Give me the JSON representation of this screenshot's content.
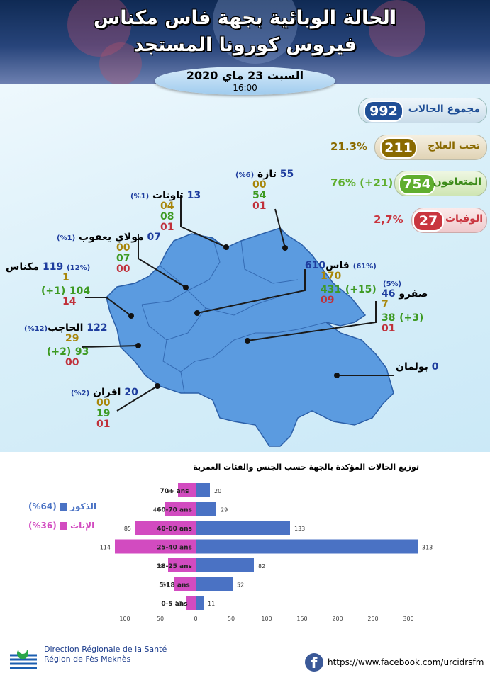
{
  "header": {
    "title_line1": "الحالة الوبائية بجهة فاس مكناس",
    "title_line2": "فيروس كورونا المستجد",
    "date": "السبت 23 ماي 2020",
    "time": "16:00"
  },
  "stats": {
    "total": {
      "label": "مجموع الحالات",
      "value": "992",
      "color": "#1f4e96"
    },
    "treatment": {
      "label": "تحت العلاج",
      "value": "211",
      "pct": "21.3%",
      "color": "#8a6a00"
    },
    "recovered": {
      "label": "المتعافون",
      "value": "754",
      "pct": "76% (+21)",
      "color": "#5fae2e"
    },
    "deaths": {
      "label": "الوفيات",
      "value": "27",
      "pct": "2,7%",
      "color": "#c9353f"
    }
  },
  "regions": {
    "taza": {
      "name": "تازة",
      "total": "55",
      "pct": "(6%)",
      "active": "00",
      "recovered": "54",
      "deaths": "01"
    },
    "taounate": {
      "name": "تاونات",
      "total": "13",
      "pct": "(1%)",
      "active": "04",
      "recovered": "08",
      "deaths": "01"
    },
    "moulay_yacoub": {
      "name": "مولاي يعقوب",
      "total": "07",
      "pct": "(1%)",
      "active": "00",
      "recovered": "07",
      "deaths": "00"
    },
    "meknes": {
      "name": "مكناس",
      "total": "119",
      "pct": "(12%)",
      "active": "1",
      "recovered": "104",
      "recovered_new": "(+1)",
      "deaths": "14"
    },
    "fes": {
      "name": "فاس",
      "total": "610",
      "pct": "(61%)",
      "active": "170",
      "recovered": "431",
      "recovered_new": "(+15)",
      "deaths": "09"
    },
    "sefrou": {
      "name": "صفرو",
      "total": "46",
      "pct": "(5%)",
      "active": "7",
      "recovered": "38",
      "recovered_new": "(+3)",
      "deaths": "01"
    },
    "hajeb": {
      "name": "الحاجب",
      "total": "122",
      "pct": "(12%)",
      "active": "29",
      "recovered": "93",
      "recovered_new": "(+2)",
      "deaths": "00"
    },
    "boulemane": {
      "name": "بولمان",
      "total": "0"
    },
    "ifrane": {
      "name": "افران",
      "total": "20",
      "pct": "(2%)",
      "active": "00",
      "recovered": "19",
      "deaths": "01"
    }
  },
  "chart_data": {
    "type": "bar",
    "title": "توزيع الحالات المؤكدة بالجهة حسب الجنس والفئات العمرية",
    "categories": [
      "70+ ans",
      "60-70 ans",
      "40-60 ans",
      "25-40 ans",
      "18-25 ans",
      "5-18 ans",
      "0-5 ans"
    ],
    "series": [
      {
        "name": "الذكور",
        "pct": "(64%)",
        "color": "#4a72c4",
        "values": [
          20,
          29,
          133,
          313,
          82,
          52,
          11
        ]
      },
      {
        "name": "الإناث",
        "pct": "(36%)",
        "color": "#d24bc0",
        "values": [
          25,
          44,
          85,
          114,
          39,
          31,
          13
        ]
      }
    ],
    "axis_ticks": [
      "100",
      "50",
      "0",
      "50",
      "100",
      "150",
      "200",
      "250",
      "300"
    ],
    "orientation": "horizontal-diverging"
  },
  "footer": {
    "org_line1": "Direction Régionale de la Santé",
    "org_line2": "Région de Fès Meknès",
    "facebook_icon": "f",
    "url": "https://www.facebook.com/urcidrsfm"
  }
}
